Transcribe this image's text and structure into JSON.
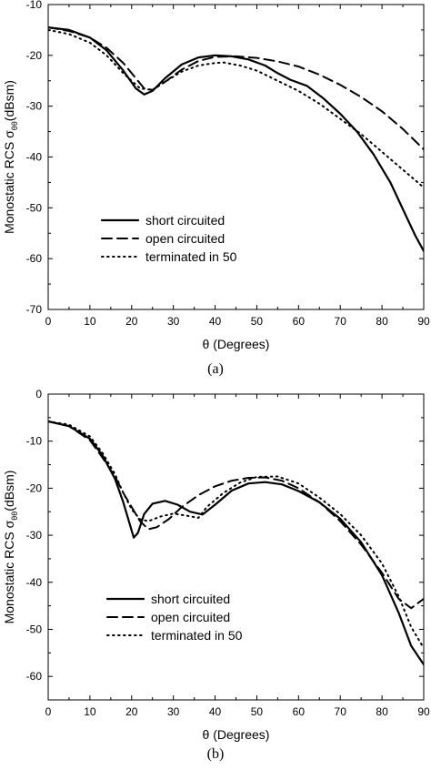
{
  "chart_data": [
    {
      "type": "line",
      "caption": "(a)",
      "xlabel": "θ (Degrees)",
      "ylabel_main": "Monostatic RCS σ",
      "ylabel_sub": "θθ",
      "ylabel_unit": "(dBsm)",
      "xlim": [
        0,
        90
      ],
      "ylim": [
        -70,
        -10
      ],
      "xticks": [
        0,
        10,
        20,
        30,
        40,
        50,
        60,
        70,
        80,
        90
      ],
      "yticks": [
        -70,
        -60,
        -50,
        -40,
        -30,
        -20,
        -10
      ],
      "grid": false,
      "legend_position": "bottom-left",
      "series": [
        {
          "name": "short circuited",
          "style": "solid",
          "x": [
            0,
            5,
            10,
            14,
            18,
            21,
            23,
            25,
            28,
            32,
            36,
            40,
            44,
            48,
            52,
            55,
            58,
            62,
            66,
            70,
            74,
            78,
            82,
            86,
            88,
            90
          ],
          "y": [
            -14.5,
            -15,
            -16.5,
            -19,
            -23,
            -26.5,
            -27.7,
            -27,
            -24.5,
            -21.8,
            -20.4,
            -20,
            -20.2,
            -20.8,
            -22,
            -23.5,
            -24.8,
            -26,
            -28.5,
            -31.5,
            -35,
            -39.5,
            -45,
            -52,
            -55.5,
            -58.5
          ]
        },
        {
          "name": "open circuited",
          "style": "dashed",
          "x": [
            0,
            5,
            10,
            14,
            18,
            21,
            23,
            25,
            28,
            32,
            36,
            40,
            45,
            50,
            55,
            60,
            65,
            70,
            75,
            80,
            85,
            90
          ],
          "y": [
            -14.5,
            -15.2,
            -16.5,
            -18.5,
            -21.5,
            -24.5,
            -26.5,
            -26.8,
            -25.2,
            -22.8,
            -21.1,
            -20.3,
            -20.2,
            -20.5,
            -21.2,
            -22.2,
            -23.8,
            -25.8,
            -28.2,
            -31,
            -34.5,
            -38.5
          ]
        },
        {
          "name": "terminated in 50",
          "style": "dotted",
          "x": [
            0,
            5,
            10,
            14,
            18,
            22,
            25,
            28,
            32,
            36,
            40,
            42,
            46,
            50,
            55,
            60,
            65,
            70,
            75,
            80,
            85,
            90
          ],
          "y": [
            -15,
            -15.8,
            -17.5,
            -20,
            -23.5,
            -26.5,
            -26.8,
            -25.2,
            -23.2,
            -22,
            -21.5,
            -21.4,
            -22,
            -23,
            -25,
            -27,
            -29.5,
            -32.5,
            -35.5,
            -39,
            -42.5,
            -46
          ]
        }
      ]
    },
    {
      "type": "line",
      "caption": "(b)",
      "xlabel": "θ (Degrees)",
      "ylabel_main": "Monostatic RCS σ",
      "ylabel_sub": "θθ",
      "ylabel_unit": "(dBsm)",
      "xlim": [
        0,
        90
      ],
      "ylim": [
        -65,
        0
      ],
      "xticks": [
        0,
        10,
        20,
        30,
        40,
        50,
        60,
        70,
        80,
        90
      ],
      "yticks": [
        -60,
        -50,
        -40,
        -30,
        -20,
        -10,
        0
      ],
      "grid": false,
      "legend_position": "bottom-left",
      "series": [
        {
          "name": "short circuited",
          "style": "solid",
          "x": [
            0,
            5,
            10,
            13,
            16,
            18,
            19.5,
            20.5,
            21.5,
            23,
            25,
            28,
            31,
            34,
            37,
            40,
            44,
            48,
            52,
            56,
            60,
            65,
            70,
            75,
            80,
            84,
            87,
            90
          ],
          "y": [
            -5.8,
            -6.8,
            -9.5,
            -13,
            -18,
            -23,
            -27.5,
            -30.5,
            -29.5,
            -25.5,
            -23.3,
            -22.7,
            -23.5,
            -25,
            -25.6,
            -23.5,
            -20.5,
            -19,
            -18.7,
            -19.2,
            -20.6,
            -23,
            -26.5,
            -31.5,
            -38.5,
            -46.5,
            -53.5,
            -57.5
          ]
        },
        {
          "name": "open circuited",
          "style": "dashed",
          "x": [
            0,
            5,
            10,
            13,
            16,
            18,
            20,
            22,
            24,
            26,
            29,
            32,
            36,
            40,
            44,
            48,
            52,
            56,
            60,
            65,
            70,
            75,
            80,
            84,
            87,
            90
          ],
          "y": [
            -5.8,
            -6.8,
            -9.8,
            -13.5,
            -17.5,
            -21,
            -24,
            -27,
            -28.7,
            -28.3,
            -26.5,
            -24,
            -21.5,
            -19.6,
            -18.4,
            -17.8,
            -17.7,
            -18.4,
            -20,
            -23,
            -27,
            -32,
            -38,
            -43.5,
            -45.5,
            -43.5
          ]
        },
        {
          "name": "terminated in 50",
          "style": "dotted",
          "x": [
            0,
            5,
            10,
            13,
            16,
            18,
            20,
            22,
            24,
            27,
            30,
            33,
            36,
            38,
            42,
            46,
            50,
            55,
            60,
            65,
            70,
            75,
            80,
            84,
            87,
            90
          ],
          "y": [
            -5.8,
            -6.5,
            -9,
            -12.5,
            -17,
            -21,
            -24.5,
            -26.6,
            -27,
            -26,
            -25.4,
            -25.8,
            -26.3,
            -24,
            -21,
            -18.8,
            -17.6,
            -17.5,
            -19,
            -22,
            -25.5,
            -30,
            -36,
            -43,
            -49.5,
            -54
          ]
        }
      ]
    }
  ]
}
